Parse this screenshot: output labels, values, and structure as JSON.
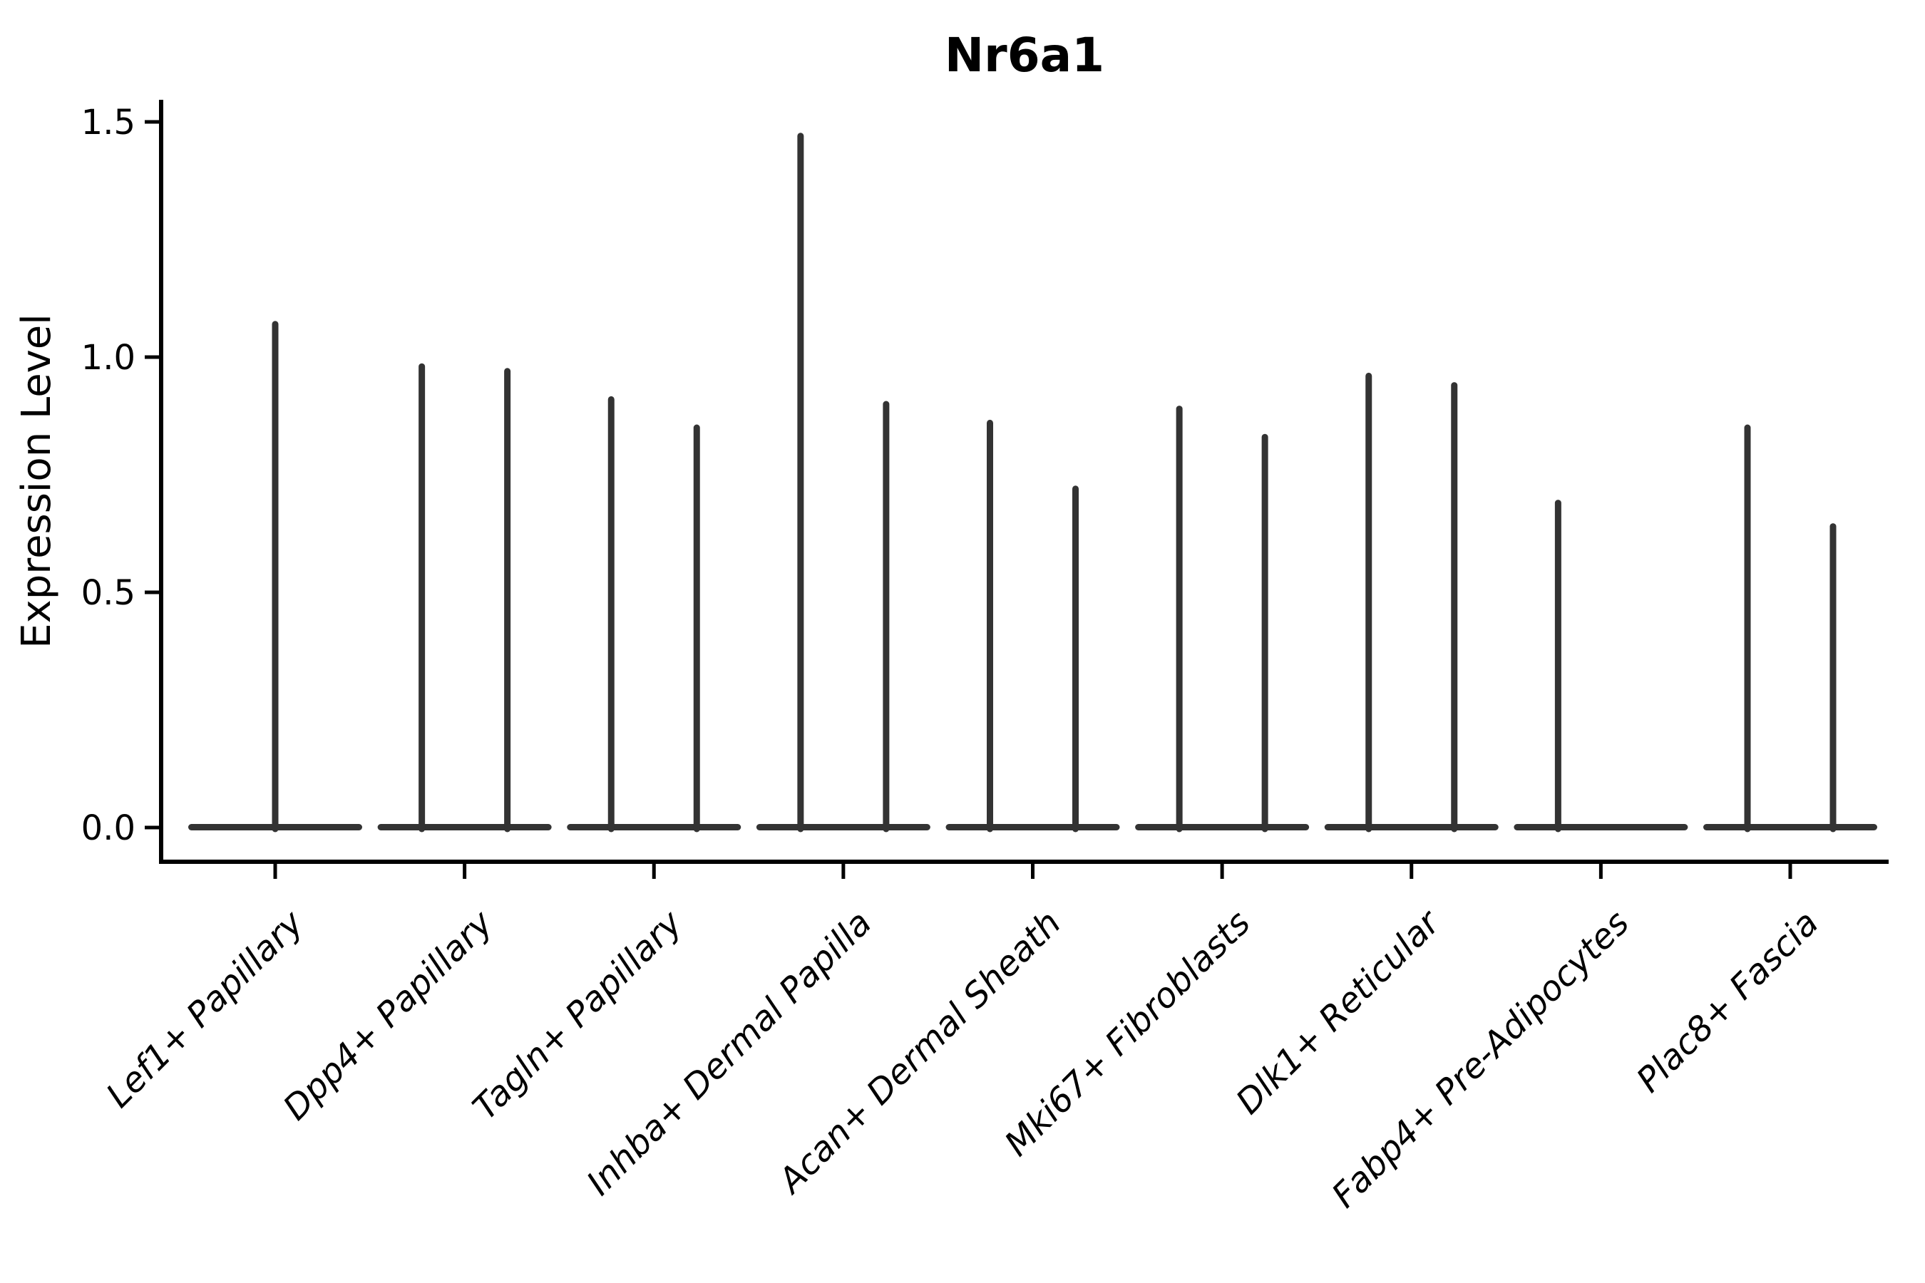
{
  "chart_data": {
    "type": "violin",
    "title": "Nr6a1",
    "ylabel": "Expression Level",
    "xlabel": "",
    "yticks": [
      "0.0",
      "0.5",
      "1.0",
      "1.5"
    ],
    "ylim": [
      -0.07,
      1.55
    ],
    "grid": false,
    "legend": null,
    "colors": {
      "violin": "#333333",
      "axis": "#000000",
      "text": "#000000",
      "background": "#ffffff"
    },
    "categories": [
      "Lef1+ Papillary",
      "Dpp4+ Papillary",
      "Tagln+ Papillary",
      "Inhba+ Dermal Papilla",
      "Acan+ Dermal Sheath",
      "Mki67+ Fibroblasts",
      "Dlk1+ Reticular",
      "Fabp4+ Pre-Adipocytes",
      "Plac8+ Fascia"
    ],
    "groups": [
      {
        "category": "Lef1+ Papillary",
        "violins": [
          {
            "slot": "center",
            "max": 1.07
          }
        ]
      },
      {
        "category": "Dpp4+ Papillary",
        "violins": [
          {
            "slot": "left",
            "max": 0.98
          },
          {
            "slot": "right",
            "max": 0.97
          }
        ]
      },
      {
        "category": "Tagln+ Papillary",
        "violins": [
          {
            "slot": "left",
            "max": 0.91
          },
          {
            "slot": "right",
            "max": 0.85
          }
        ]
      },
      {
        "category": "Inhba+ Dermal Papilla",
        "violins": [
          {
            "slot": "left",
            "max": 1.47
          },
          {
            "slot": "right",
            "max": 0.9
          }
        ]
      },
      {
        "category": "Acan+ Dermal Sheath",
        "violins": [
          {
            "slot": "left",
            "max": 0.86
          },
          {
            "slot": "right",
            "max": 0.72
          }
        ]
      },
      {
        "category": "Mki67+ Fibroblasts",
        "violins": [
          {
            "slot": "left",
            "max": 0.89
          },
          {
            "slot": "right",
            "max": 0.83
          }
        ]
      },
      {
        "category": "Dlk1+ Reticular",
        "violins": [
          {
            "slot": "left",
            "max": 0.96
          },
          {
            "slot": "right",
            "max": 0.94
          }
        ]
      },
      {
        "category": "Fabp4+ Pre-Adipocytes",
        "violins": [
          {
            "slot": "left",
            "max": 0.69
          },
          {
            "slot": "right",
            "max": 0
          }
        ]
      },
      {
        "category": "Plac8+ Fascia",
        "violins": [
          {
            "slot": "left",
            "max": 0.85
          },
          {
            "slot": "right",
            "max": 0.64
          }
        ]
      }
    ],
    "note": "Each violin is a wide flat base at expression 0 with a thin vertical tail reaching its maximum value"
  }
}
